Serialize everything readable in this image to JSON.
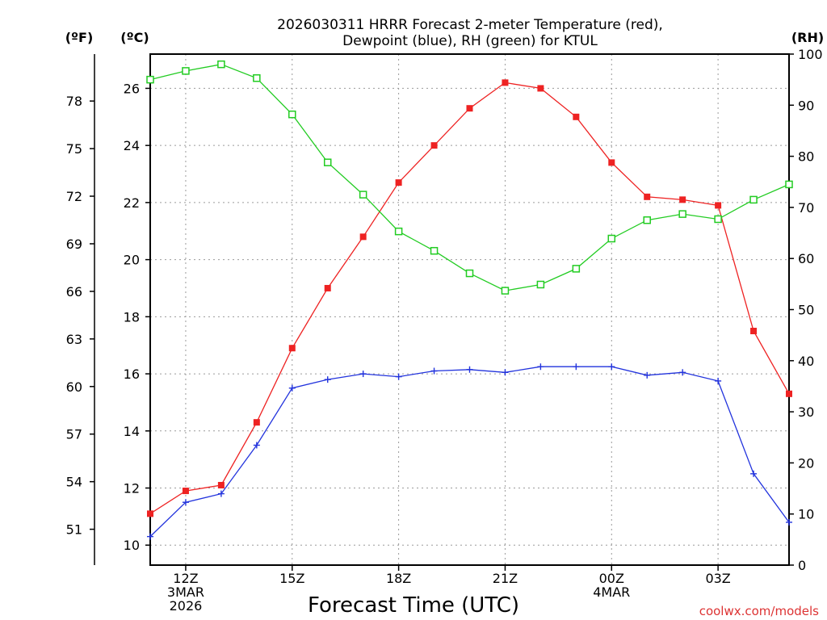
{
  "header": {
    "title_line1": "2026030311 HRRR Forecast 2-meter Temperature (red),",
    "title_line2": "Dewpoint (blue), RH (green) for KTUL"
  },
  "axes": {
    "f_unit": "(ºF)",
    "c_unit": "(ºC)",
    "rh_unit": "(RH)",
    "x_label": "Forecast Time (UTC)"
  },
  "credit": "coolwx.com/models",
  "chart_data": {
    "type": "line",
    "title": "2026030311 HRRR Forecast 2-meter Temperature (red), Dewpoint (blue), RH (green) for KTUL",
    "xlabel": "Forecast Time (UTC)",
    "x_hours_utc": [
      11,
      12,
      13,
      14,
      15,
      16,
      17,
      18,
      19,
      20,
      21,
      22,
      23,
      24,
      25,
      26,
      27,
      28,
      29
    ],
    "x_range": [
      11,
      29
    ],
    "x_ticks": [
      {
        "hour": 12,
        "lines": [
          "12Z",
          "3MAR",
          "2026"
        ]
      },
      {
        "hour": 15,
        "lines": [
          "15Z"
        ]
      },
      {
        "hour": 18,
        "lines": [
          "18Z"
        ]
      },
      {
        "hour": 21,
        "lines": [
          "21Z"
        ]
      },
      {
        "hour": 24,
        "lines": [
          "00Z",
          "4MAR"
        ]
      },
      {
        "hour": 27,
        "lines": [
          "03Z"
        ]
      }
    ],
    "y_left_celsius": {
      "label": "(ºC)",
      "range": [
        9.3,
        27.2
      ],
      "ticks": [
        10,
        12,
        14,
        16,
        18,
        20,
        22,
        24,
        26
      ]
    },
    "y_left_fahrenheit": {
      "label": "(ºF)",
      "ticks": [
        51,
        54,
        57,
        60,
        63,
        66,
        69,
        72,
        75,
        78
      ]
    },
    "y_right_rh": {
      "label": "(RH)",
      "range": [
        0,
        100
      ],
      "ticks": [
        0,
        10,
        20,
        30,
        40,
        50,
        60,
        70,
        80,
        90,
        100
      ]
    },
    "grid": true,
    "series": [
      {
        "name": "2-meter Temperature",
        "axis": "celsius",
        "color": "#ee2222",
        "marker": "filled-square",
        "values": [
          11.1,
          11.9,
          12.1,
          14.3,
          16.9,
          19.0,
          20.8,
          22.7,
          24.0,
          25.3,
          26.2,
          26.0,
          25.0,
          23.4,
          22.2,
          22.1,
          21.9,
          17.5,
          15.3
        ]
      },
      {
        "name": "Dewpoint",
        "axis": "celsius",
        "color": "#2233dd",
        "marker": "plus",
        "values": [
          10.3,
          11.5,
          11.8,
          13.5,
          15.5,
          15.8,
          16.0,
          15.9,
          16.1,
          16.15,
          16.05,
          16.25,
          16.25,
          16.25,
          15.95,
          16.05,
          15.75,
          12.5,
          10.8
        ]
      },
      {
        "name": "RH",
        "axis": "rh",
        "color": "#22cc22",
        "marker": "open-square",
        "values": [
          95,
          96.7,
          98,
          95.3,
          88.2,
          78.8,
          72.5,
          65.3,
          61.5,
          57.1,
          53.7,
          54.9,
          58,
          63.9,
          67.5,
          68.7,
          67.7,
          71.5,
          74.5
        ]
      }
    ]
  }
}
